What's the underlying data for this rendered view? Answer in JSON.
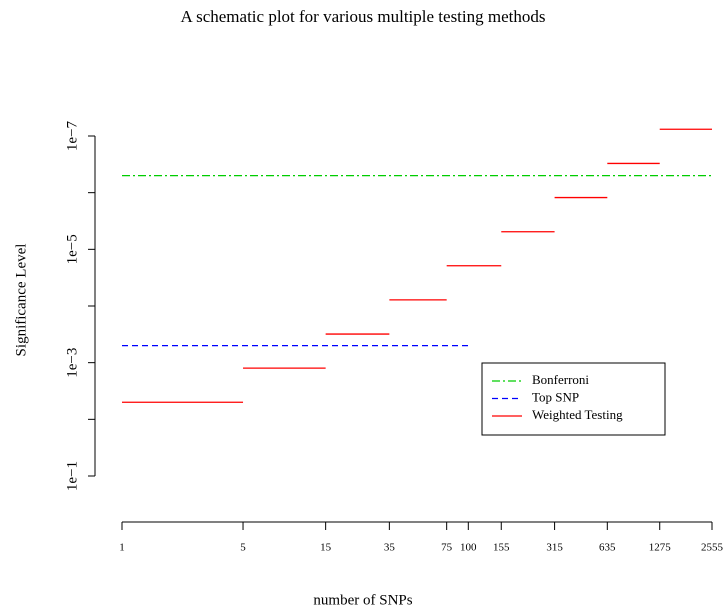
{
  "chart_data": {
    "type": "segments",
    "title": "A schematic plot for various multiple testing methods",
    "xlabel": "number of SNPs",
    "ylabel": "Significance Level",
    "xscale": "log",
    "yscale": "log",
    "xlim": [
      1,
      2555
    ],
    "xticks": [
      1,
      5,
      15,
      35,
      75,
      100,
      155,
      315,
      635,
      1275,
      2555
    ],
    "ylim": [
      0.1,
      1e-07
    ],
    "yticks": [
      {
        "value": 0.1,
        "label": "1e−1"
      },
      {
        "value": 0.001,
        "label": "1e−3"
      },
      {
        "value": 1e-05,
        "label": "1e−5"
      },
      {
        "value": 1e-07,
        "label": "1e−7"
      }
    ],
    "yminorticks": [
      0.01,
      0.0001,
      1e-06
    ],
    "legend": "right",
    "series": [
      {
        "name": "Bonferroni",
        "color": "#00cd00",
        "style": "dashdot",
        "x": [
          [
            1,
            2555
          ]
        ],
        "values": [
          5e-07
        ]
      },
      {
        "name": "Top SNP",
        "color": "#0000ff",
        "style": "dashed",
        "x": [
          [
            1,
            100
          ]
        ],
        "values": [
          0.0005
        ]
      },
      {
        "name": "Weighted Testing",
        "color": "#ff0000",
        "style": "solid",
        "x": [
          [
            1,
            5
          ],
          [
            5,
            15
          ],
          [
            15,
            35
          ],
          [
            35,
            75
          ],
          [
            75,
            155
          ],
          [
            155,
            315
          ],
          [
            315,
            635
          ],
          [
            635,
            1275
          ],
          [
            1275,
            2555
          ]
        ],
        "values": [
          0.005,
          0.00125,
          0.0003125,
          7.8e-05,
          1.95e-05,
          4.9e-06,
          1.22e-06,
          3.05e-07,
          7.6e-08
        ]
      }
    ]
  }
}
